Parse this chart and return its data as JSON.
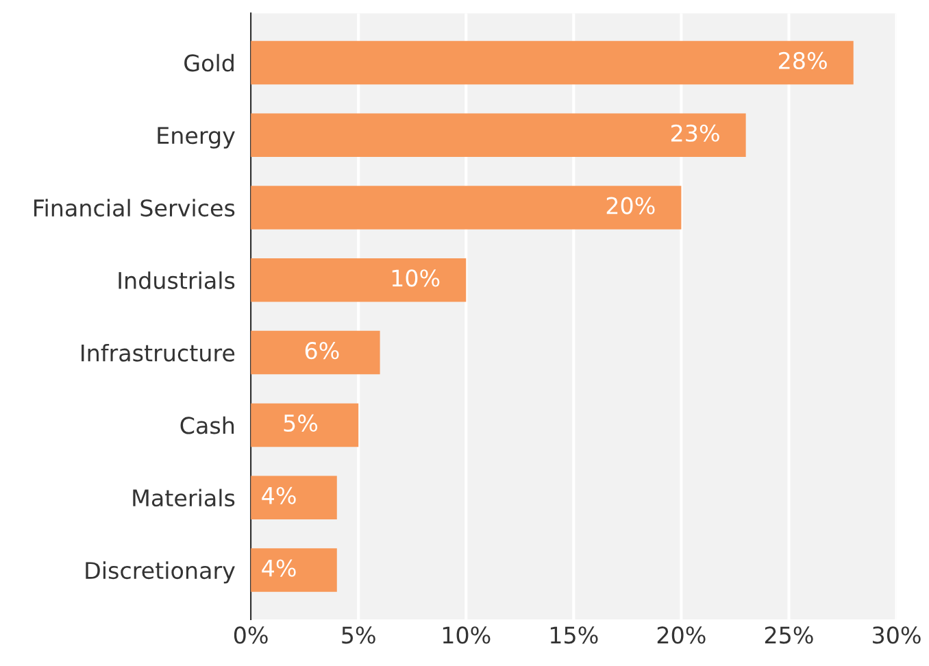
{
  "chart_data": {
    "type": "bar",
    "orientation": "horizontal",
    "categories": [
      "Gold",
      "Energy",
      "Financial Services",
      "Industrials",
      "Infrastructure",
      "Cash",
      "Materials",
      "Discretionary"
    ],
    "values": [
      28,
      23,
      20,
      10,
      6,
      5,
      4,
      4
    ],
    "value_labels": [
      "28%",
      "23%",
      "20%",
      "10%",
      "6%",
      "5%",
      "4%",
      "4%"
    ],
    "color": "#f79859",
    "xlim": [
      0,
      30
    ],
    "xticks": [
      {
        "value": 0,
        "label": "0%"
      },
      {
        "value": 5,
        "label": "5%"
      },
      {
        "value": 10,
        "label": "10%"
      },
      {
        "value": 15,
        "label": "15%"
      },
      {
        "value": 20,
        "label": "20%"
      },
      {
        "value": 25,
        "label": "25%"
      },
      {
        "value": 30,
        "label": "30%"
      }
    ],
    "grid": "x"
  }
}
